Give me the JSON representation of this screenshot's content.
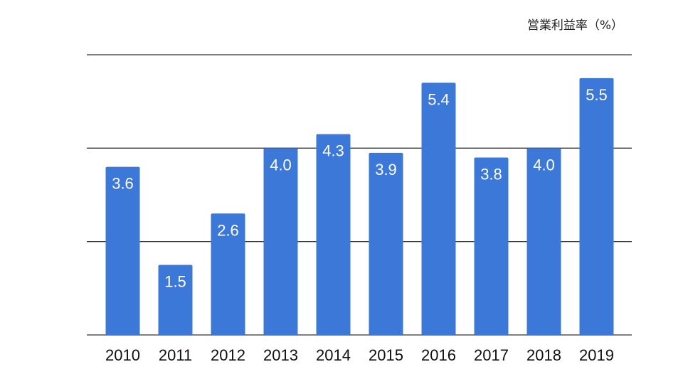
{
  "chart_data": {
    "type": "bar",
    "title": "営業利益率（%）",
    "xlabel": "",
    "ylabel": "",
    "categories": [
      "2010",
      "2011",
      "2012",
      "2013",
      "2014",
      "2015",
      "2016",
      "2017",
      "2018",
      "2019"
    ],
    "values": [
      3.6,
      1.5,
      2.6,
      4.0,
      4.3,
      3.9,
      5.4,
      3.8,
      4.0,
      5.5
    ],
    "data_labels": [
      "3.6",
      "1.5",
      "2.6",
      "4.0",
      "4.3",
      "3.9",
      "5.4",
      "3.8",
      "4.0",
      "5.5"
    ],
    "ylim": [
      0,
      6
    ],
    "gridlines": [
      0,
      2,
      4,
      6
    ],
    "grid": true,
    "legend": "none",
    "bar_color": "#3c78d8",
    "label_color": "#ffffff",
    "grid_color": "#333333"
  }
}
